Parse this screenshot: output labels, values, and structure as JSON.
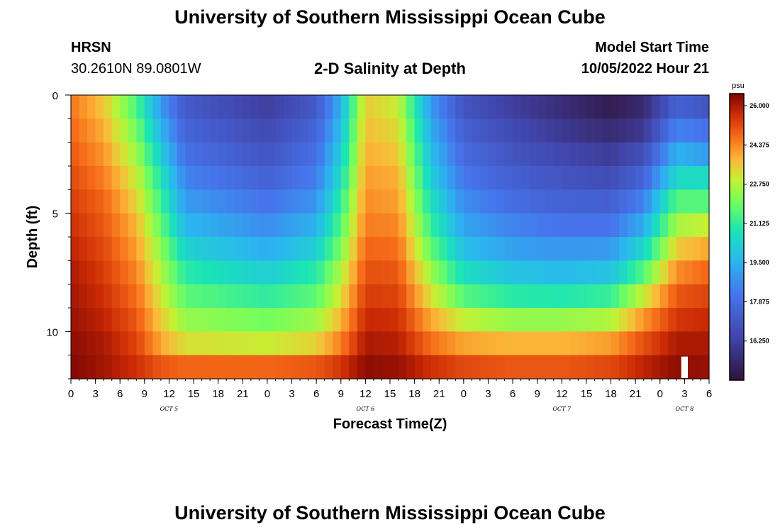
{
  "header": {
    "title": "University of Southern Mississippi Ocean Cube",
    "station_code": "HRSN",
    "station_coords": "30.2610N  89.0801W",
    "subtitle": "2-D Salinity at Depth",
    "model_start_label": "Model Start Time",
    "model_start_value": "10/05/2022 Hour 21",
    "footer_title": "University of Southern Mississippi Ocean Cube"
  },
  "chart_data": {
    "type": "heatmap",
    "title": "2-D Salinity at Depth",
    "xlabel": "Forecast Time(Z)",
    "ylabel": "Depth (ft)",
    "x_unit": "hours since 2022-10-05 00Z",
    "xlim": [
      0,
      78
    ],
    "ylim": [
      0,
      12
    ],
    "x_tick_values": [
      0,
      3,
      6,
      9,
      12,
      15,
      18,
      21,
      24,
      27,
      30,
      33,
      36,
      39,
      42,
      45,
      48,
      51,
      54,
      57,
      60,
      63,
      66,
      69,
      72,
      75,
      78
    ],
    "x_tick_labels": [
      "0",
      "3",
      "6",
      "9",
      "12",
      "15",
      "18",
      "21",
      "0",
      "3",
      "6",
      "9",
      "12",
      "15",
      "18",
      "21",
      "0",
      "3",
      "6",
      "9",
      "12",
      "15",
      "18",
      "21",
      "0",
      "3",
      "6"
    ],
    "date_labels": [
      {
        "x": 12,
        "text": "OCT 5"
      },
      {
        "x": 36,
        "text": "OCT 6"
      },
      {
        "x": 60,
        "text": "OCT 7"
      },
      {
        "x": 75,
        "text": "OCT 8"
      }
    ],
    "y_major_ticks": [
      0,
      5,
      10
    ],
    "y_minor_step": 1,
    "x_minor_step": 1,
    "colorbar": {
      "unit": "psu",
      "min": 14.625,
      "max": 26.5,
      "tick_values": [
        26.0,
        24.375,
        22.75,
        21.125,
        19.5,
        17.875,
        16.25
      ],
      "tick_labels": [
        "26.000",
        "24.375",
        "22.750",
        "21.125",
        "19.500",
        "17.875",
        "16.250"
      ]
    },
    "depth_levels": [
      0.5,
      1.5,
      2.5,
      3.5,
      4.5,
      5.5,
      6.5,
      7.5,
      8.5,
      9.5,
      10.5,
      11.5
    ],
    "control_times": [
      0,
      4,
      8,
      11,
      14,
      24,
      30,
      33,
      36,
      40,
      44,
      48,
      54,
      60,
      66,
      70,
      74,
      78
    ],
    "salinity_control": [
      [
        24.6,
        23.6,
        21.5,
        19.0,
        17.2,
        16.2,
        17.2,
        19.5,
        23.5,
        23.0,
        19.0,
        17.0,
        16.2,
        15.6,
        15.0,
        15.5,
        17.5,
        17.0
      ],
      [
        24.8,
        23.9,
        22.0,
        19.6,
        17.6,
        16.6,
        17.6,
        19.8,
        23.7,
        23.3,
        19.4,
        17.4,
        16.6,
        16.0,
        15.5,
        16.0,
        18.5,
        18.0
      ],
      [
        25.0,
        24.2,
        22.5,
        20.2,
        18.0,
        17.0,
        18.0,
        20.2,
        23.9,
        23.6,
        19.8,
        17.8,
        17.0,
        16.5,
        16.1,
        16.8,
        19.5,
        19.0
      ],
      [
        25.2,
        24.5,
        23.0,
        20.8,
        18.5,
        17.5,
        18.4,
        20.6,
        24.1,
        23.9,
        20.2,
        18.2,
        17.4,
        17.0,
        16.7,
        17.6,
        20.5,
        20.5
      ],
      [
        25.4,
        24.8,
        23.4,
        21.3,
        19.0,
        18.1,
        18.9,
        21.1,
        24.3,
        24.1,
        20.7,
        18.7,
        17.9,
        17.5,
        17.4,
        18.5,
        21.6,
        21.6
      ],
      [
        25.6,
        25.0,
        23.8,
        21.8,
        19.6,
        18.7,
        19.5,
        21.6,
        24.5,
        24.4,
        21.2,
        19.2,
        18.5,
        18.1,
        18.1,
        19.4,
        22.6,
        23.0
      ],
      [
        25.8,
        25.2,
        24.1,
        22.3,
        20.3,
        19.4,
        20.2,
        22.1,
        24.8,
        24.7,
        21.8,
        19.8,
        19.1,
        18.9,
        19.0,
        20.4,
        23.5,
        24.0
      ],
      [
        26.0,
        25.4,
        24.4,
        22.7,
        21.0,
        20.2,
        21.0,
        22.7,
        25.1,
        25.0,
        22.5,
        20.6,
        19.9,
        19.7,
        19.9,
        21.6,
        24.3,
        24.8
      ],
      [
        26.1,
        25.6,
        24.7,
        23.1,
        21.7,
        21.1,
        21.7,
        23.2,
        25.4,
        25.3,
        23.2,
        21.6,
        21.0,
        20.9,
        21.2,
        23.0,
        25.0,
        25.3
      ],
      [
        26.2,
        25.8,
        25.0,
        23.5,
        22.4,
        22.0,
        22.5,
        23.8,
        25.7,
        25.6,
        24.0,
        22.9,
        22.4,
        22.4,
        22.7,
        24.2,
        25.5,
        25.7
      ],
      [
        26.3,
        26.0,
        25.3,
        24.0,
        23.2,
        23.0,
        23.4,
        24.5,
        26.0,
        25.9,
        24.7,
        24.0,
        23.8,
        23.8,
        24.1,
        25.1,
        26.0,
        26.0
      ],
      [
        26.4,
        26.1,
        25.6,
        25.0,
        24.8,
        24.8,
        25.0,
        25.5,
        26.3,
        26.2,
        25.6,
        25.2,
        25.0,
        25.0,
        25.2,
        25.8,
        26.3,
        26.2
      ]
    ],
    "missing_cell": {
      "time": 75,
      "depth_level": 11.5
    }
  }
}
